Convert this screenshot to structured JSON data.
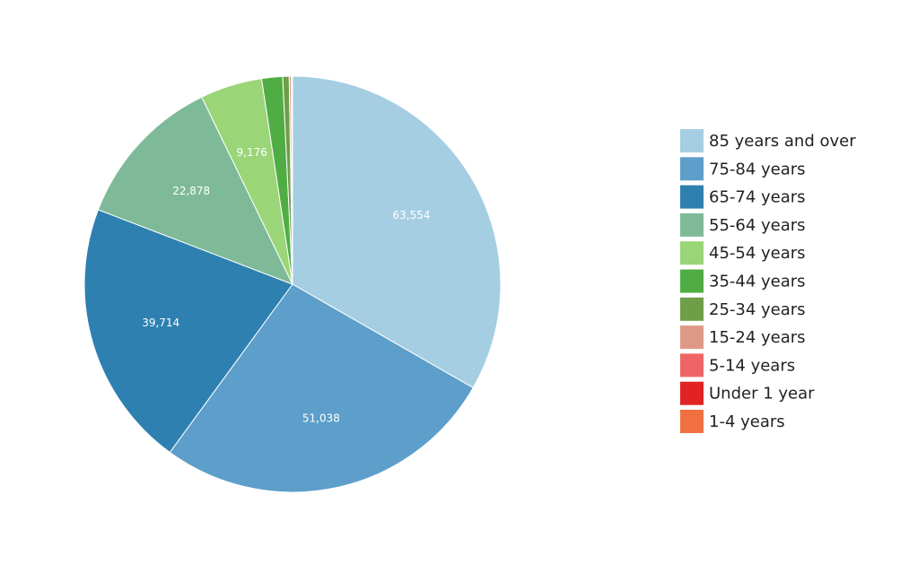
{
  "chart_data": {
    "type": "pie",
    "title": "",
    "legend_position": "right",
    "start": "12 o'clock",
    "direction": "clockwise",
    "slices": [
      {
        "label": "85 years and over",
        "value": 63554,
        "display": "63,554",
        "color": "#a6cee3"
      },
      {
        "label": "75-84 years",
        "value": 51038,
        "display": "51,038",
        "color": "#5d9ecb"
      },
      {
        "label": "65-74 years",
        "value": 39714,
        "display": "39,714",
        "color": "#2e80b0"
      },
      {
        "label": "55-64 years",
        "value": 22878,
        "display": "22,878",
        "color": "#7fba98"
      },
      {
        "label": "45-54 years",
        "value": 9176,
        "display": "9,176",
        "color": "#9ad578"
      },
      {
        "label": "35-44 years",
        "value": 3100,
        "display": "",
        "color": "#4fad44"
      },
      {
        "label": "25-34 years",
        "value": 950,
        "display": "",
        "color": "#6e9e47"
      },
      {
        "label": "15-24 years",
        "value": 300,
        "display": "",
        "color": "#de9986"
      },
      {
        "label": "5-14 years",
        "value": 80,
        "display": "",
        "color": "#ef6565"
      },
      {
        "label": "Under 1 year",
        "value": 50,
        "display": "",
        "color": "#e12324"
      },
      {
        "label": "1-4 years",
        "value": 60,
        "display": "",
        "color": "#f07041"
      }
    ]
  }
}
